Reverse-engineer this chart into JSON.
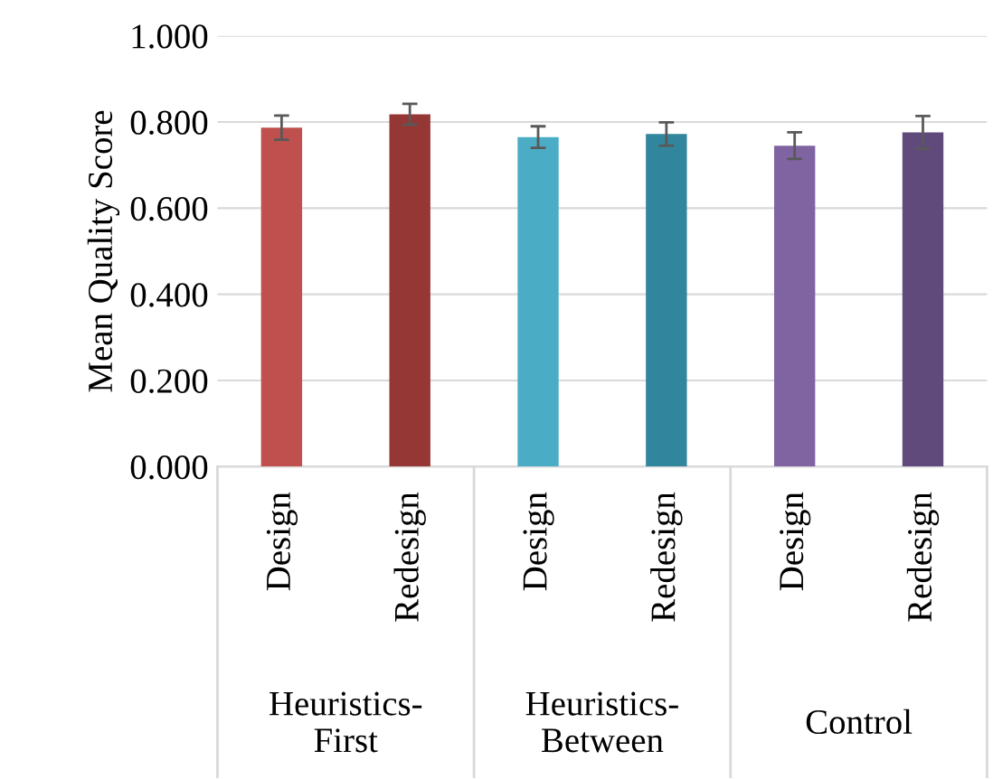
{
  "chart_data": {
    "type": "bar",
    "ylabel": "Mean Quality Score",
    "categories": [
      "Design",
      "Redesign",
      "Design",
      "Redesign",
      "Design",
      "Redesign"
    ],
    "values": [
      0.787,
      0.818,
      0.765,
      0.772,
      0.745,
      0.776
    ],
    "errors": [
      0.028,
      0.024,
      0.025,
      0.027,
      0.031,
      0.038
    ],
    "colors": [
      "#c0504d",
      "#953735",
      "#4bacc6",
      "#31859c",
      "#8064a2",
      "#604a7b"
    ],
    "annotations": [
      "Heuristics-\nFirst",
      "Heuristics-\nBetween",
      "Control"
    ],
    "ylim": [
      0,
      1
    ],
    "yticks": [
      {
        "value": 0,
        "label": "0.000"
      },
      {
        "value": 0.2,
        "label": "0.200"
      },
      {
        "value": 0.4,
        "label": "0.400"
      },
      {
        "value": 0.6,
        "label": "0.600"
      },
      {
        "value": 0.8,
        "label": "0.800"
      },
      {
        "value": 1,
        "label": "1.000"
      }
    ],
    "grid": "y",
    "legend": false
  }
}
